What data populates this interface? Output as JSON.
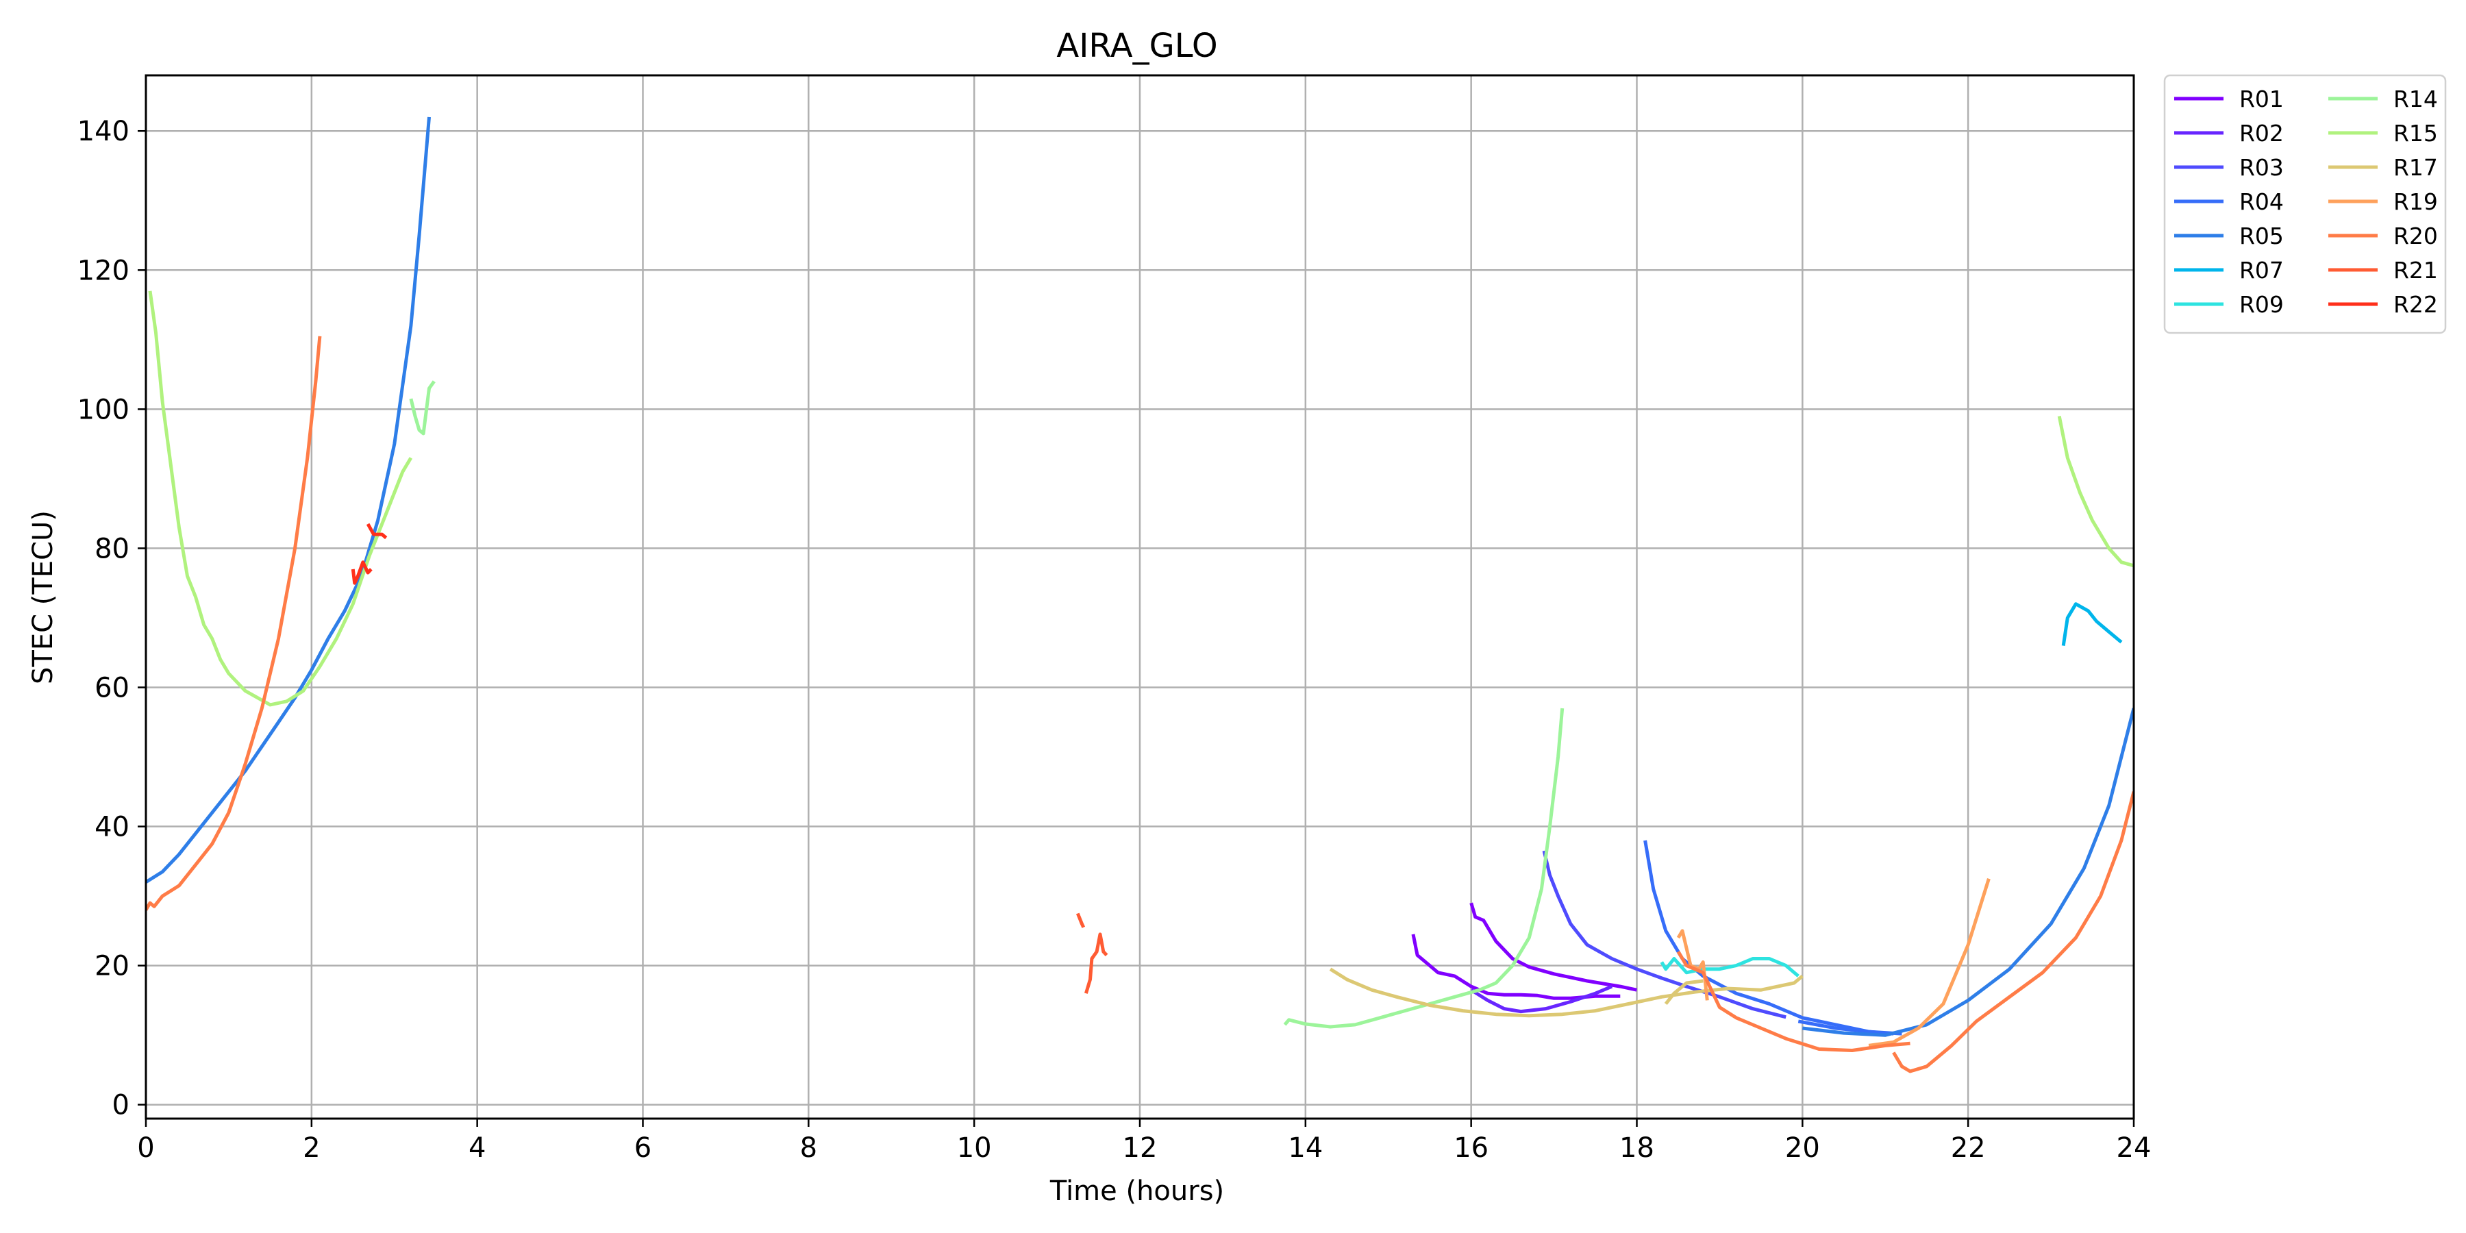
{
  "chart_data": {
    "type": "line",
    "title": "AIRA_GLO",
    "xlabel": "Time (hours)",
    "ylabel": "STEC (TECU)",
    "xlim": [
      0,
      24
    ],
    "ylim": [
      -2,
      148
    ],
    "xticks": [
      0,
      2,
      4,
      6,
      8,
      10,
      12,
      14,
      16,
      18,
      20,
      22,
      24
    ],
    "yticks": [
      0,
      20,
      40,
      60,
      80,
      100,
      120,
      140
    ],
    "grid": true,
    "legend_position": "outside-top-right",
    "legend_columns": 2,
    "series": [
      {
        "name": "R01",
        "color": "#8000ff",
        "segments": [
          [
            [
              15.3,
              24.5
            ],
            [
              15.35,
              21.5
            ],
            [
              15.45,
              20.5
            ],
            [
              15.6,
              19
            ],
            [
              15.8,
              18.5
            ],
            [
              16.0,
              17
            ],
            [
              16.2,
              16
            ],
            [
              16.4,
              15.8
            ],
            [
              16.6,
              15.8
            ],
            [
              16.8,
              15.7
            ],
            [
              17.0,
              15.3
            ],
            [
              17.2,
              15.3
            ],
            [
              17.5,
              15.6
            ],
            [
              17.8,
              15.6
            ]
          ],
          [
            [
              16.0,
              29
            ],
            [
              16.05,
              27
            ],
            [
              16.15,
              26.5
            ],
            [
              16.3,
              23.5
            ],
            [
              16.5,
              21
            ],
            [
              16.7,
              19.8
            ],
            [
              17.0,
              18.8
            ],
            [
              17.4,
              17.8
            ],
            [
              17.8,
              17.0
            ],
            [
              18.0,
              16.5
            ]
          ]
        ]
      },
      {
        "name": "R02",
        "color": "#6826ff",
        "segments": [
          [
            [
              16.0,
              16.5
            ],
            [
              16.2,
              15
            ],
            [
              16.4,
              13.8
            ],
            [
              16.6,
              13.4
            ],
            [
              16.9,
              13.8
            ],
            [
              17.2,
              14.8
            ],
            [
              17.5,
              16
            ],
            [
              17.7,
              17
            ]
          ]
        ]
      },
      {
        "name": "R03",
        "color": "#4f4bfe",
        "segments": [
          [
            [
              16.88,
              36.5
            ],
            [
              16.95,
              33
            ],
            [
              17.05,
              30
            ],
            [
              17.2,
              26
            ],
            [
              17.4,
              23
            ],
            [
              17.7,
              21
            ],
            [
              18.0,
              19.5
            ],
            [
              18.3,
              18.2
            ],
            [
              18.6,
              17
            ],
            [
              19.0,
              15.5
            ],
            [
              19.4,
              13.8
            ],
            [
              19.8,
              12.6
            ]
          ]
        ]
      },
      {
        "name": "R04",
        "color": "#366df9",
        "segments": [
          [
            [
              18.1,
              38
            ],
            [
              18.2,
              31
            ],
            [
              18.35,
              25
            ],
            [
              18.55,
              21
            ],
            [
              18.8,
              18.5
            ],
            [
              19.2,
              16
            ],
            [
              19.6,
              14.5
            ],
            [
              20.0,
              12.5
            ],
            [
              20.4,
              11.5
            ],
            [
              20.8,
              10.5
            ],
            [
              21.2,
              10.2
            ]
          ],
          [
            [
              19.95,
              12
            ],
            [
              20.4,
              11
            ],
            [
              20.8,
              10.5
            ],
            [
              21.1,
              10.2
            ]
          ]
        ]
      },
      {
        "name": "R05",
        "color": "#2e7ee8",
        "segments": [
          [
            [
              0.0,
              32
            ],
            [
              0.2,
              33.5
            ],
            [
              0.4,
              36
            ],
            [
              0.6,
              39
            ],
            [
              0.8,
              42
            ],
            [
              1.0,
              45
            ],
            [
              1.2,
              48
            ],
            [
              1.4,
              51.5
            ],
            [
              1.6,
              55
            ],
            [
              1.8,
              58.5
            ],
            [
              2.0,
              62.5
            ],
            [
              2.2,
              67
            ],
            [
              2.4,
              71
            ],
            [
              2.6,
              76
            ],
            [
              2.8,
              84
            ],
            [
              3.0,
              95
            ],
            [
              3.2,
              112
            ],
            [
              3.3,
              125
            ],
            [
              3.42,
              142
            ]
          ],
          [
            [
              20.0,
              11
            ],
            [
              20.5,
              10.3
            ],
            [
              21.0,
              10
            ],
            [
              21.5,
              11.5
            ],
            [
              22.0,
              15
            ],
            [
              22.5,
              19.5
            ],
            [
              23.0,
              26
            ],
            [
              23.4,
              34
            ],
            [
              23.7,
              43
            ],
            [
              24.0,
              57
            ]
          ]
        ]
      },
      {
        "name": "R07",
        "color": "#00b5eb",
        "segments": [
          [
            [
              23.15,
              66
            ],
            [
              23.2,
              70
            ],
            [
              23.3,
              72
            ],
            [
              23.45,
              71
            ],
            [
              23.55,
              69.5
            ],
            [
              23.7,
              68
            ],
            [
              23.85,
              66.5
            ]
          ]
        ]
      },
      {
        "name": "R09",
        "color": "#2ee3e0",
        "segments": [
          [
            [
              18.3,
              20.5
            ],
            [
              18.35,
              19.5
            ],
            [
              18.45,
              21
            ],
            [
              18.6,
              19
            ],
            [
              18.8,
              19.5
            ],
            [
              19.0,
              19.5
            ],
            [
              19.2,
              20
            ],
            [
              19.4,
              21
            ],
            [
              19.6,
              21
            ],
            [
              19.8,
              20
            ],
            [
              19.95,
              18.5
            ]
          ]
        ]
      },
      {
        "name": "R14",
        "color": "#9cf49a",
        "segments": [
          [
            [
              13.75,
              11.5
            ],
            [
              13.8,
              12.2
            ],
            [
              14.0,
              11.6
            ],
            [
              14.3,
              11.2
            ],
            [
              14.6,
              11.5
            ],
            [
              14.9,
              12.5
            ],
            [
              15.2,
              13.5
            ],
            [
              15.5,
              14.5
            ],
            [
              15.8,
              15.5
            ],
            [
              16.1,
              16.5
            ],
            [
              16.3,
              17.5
            ],
            [
              16.5,
              20
            ],
            [
              16.7,
              24
            ],
            [
              16.85,
              31
            ],
            [
              16.95,
              40
            ],
            [
              17.05,
              50
            ],
            [
              17.1,
              57
            ]
          ],
          [
            [
              3.2,
              101.5
            ],
            [
              3.25,
              99
            ],
            [
              3.3,
              97
            ],
            [
              3.35,
              96.5
            ],
            [
              3.42,
              103
            ],
            [
              3.48,
              104
            ]
          ]
        ]
      },
      {
        "name": "R15",
        "color": "#b0f27e",
        "segments": [
          [
            [
              0.05,
              117
            ],
            [
              0.12,
              111
            ],
            [
              0.2,
              101
            ],
            [
              0.3,
              92
            ],
            [
              0.4,
              83
            ],
            [
              0.5,
              76
            ],
            [
              0.6,
              73
            ],
            [
              0.7,
              69
            ],
            [
              0.8,
              67
            ],
            [
              0.9,
              64
            ],
            [
              1.0,
              62
            ],
            [
              1.2,
              59.5
            ],
            [
              1.5,
              57.5
            ],
            [
              1.7,
              58
            ],
            [
              1.9,
              59.5
            ],
            [
              2.1,
              63
            ],
            [
              2.3,
              67
            ],
            [
              2.5,
              72
            ],
            [
              2.7,
              79
            ],
            [
              2.9,
              85
            ],
            [
              3.1,
              91
            ],
            [
              3.2,
              93
            ]
          ],
          [
            [
              23.1,
              99
            ],
            [
              23.2,
              93
            ],
            [
              23.35,
              88
            ],
            [
              23.5,
              84
            ],
            [
              23.7,
              80
            ],
            [
              23.85,
              78
            ],
            [
              24.0,
              77.5
            ]
          ]
        ]
      },
      {
        "name": "R17",
        "color": "#dcc873",
        "segments": [
          [
            [
              14.3,
              19.5
            ],
            [
              14.5,
              18
            ],
            [
              14.8,
              16.5
            ],
            [
              15.1,
              15.5
            ],
            [
              15.5,
              14.3
            ],
            [
              15.9,
              13.5
            ],
            [
              16.3,
              13
            ],
            [
              16.7,
              12.8
            ],
            [
              17.1,
              13
            ],
            [
              17.5,
              13.5
            ],
            [
              17.9,
              14.5
            ],
            [
              18.3,
              15.5
            ],
            [
              18.7,
              16.2
            ],
            [
              19.1,
              16.7
            ],
            [
              19.5,
              16.5
            ],
            [
              19.9,
              17.5
            ],
            [
              20.0,
              18.5
            ]
          ],
          [
            [
              18.35,
              14.5
            ],
            [
              18.45,
              16
            ],
            [
              18.6,
              17.5
            ],
            [
              18.8,
              17.8
            ]
          ]
        ]
      },
      {
        "name": "R19",
        "color": "#fea15c",
        "segments": [
          [
            [
              18.5,
              24
            ],
            [
              18.55,
              25
            ],
            [
              18.65,
              20
            ],
            [
              18.75,
              19.5
            ],
            [
              18.8,
              20.5
            ],
            [
              18.85,
              15
            ]
          ],
          [
            [
              20.8,
              8.5
            ],
            [
              21.1,
              9
            ],
            [
              21.4,
              11
            ],
            [
              21.7,
              14.5
            ],
            [
              22.0,
              23
            ],
            [
              22.25,
              32.5
            ]
          ]
        ]
      },
      {
        "name": "R20",
        "color": "#ff7c47",
        "segments": [
          [
            [
              0.0,
              28
            ],
            [
              0.05,
              29
            ],
            [
              0.1,
              28.5
            ],
            [
              0.2,
              30
            ],
            [
              0.4,
              31.5
            ],
            [
              0.6,
              34.5
            ],
            [
              0.8,
              37.5
            ],
            [
              1.0,
              42
            ],
            [
              1.2,
              49
            ],
            [
              1.4,
              57
            ],
            [
              1.6,
              67
            ],
            [
              1.8,
              80
            ],
            [
              1.95,
              93
            ],
            [
              2.05,
              104
            ],
            [
              2.1,
              110.5
            ]
          ],
          [
            [
              18.5,
              22
            ],
            [
              18.6,
              20
            ],
            [
              18.8,
              19
            ],
            [
              19.0,
              14
            ],
            [
              19.2,
              12.5
            ],
            [
              19.5,
              11
            ],
            [
              19.8,
              9.5
            ],
            [
              20.2,
              8
            ],
            [
              20.6,
              7.8
            ],
            [
              21.0,
              8.5
            ],
            [
              21.3,
              8.8
            ]
          ],
          [
            [
              21.1,
              7.5
            ],
            [
              21.2,
              5.5
            ],
            [
              21.3,
              4.8
            ],
            [
              21.5,
              5.5
            ],
            [
              21.8,
              8.5
            ],
            [
              22.1,
              12
            ],
            [
              22.5,
              15.5
            ],
            [
              22.9,
              19
            ],
            [
              23.3,
              24
            ],
            [
              23.6,
              30
            ],
            [
              23.85,
              38
            ],
            [
              24.0,
              45
            ]
          ]
        ]
      },
      {
        "name": "R21",
        "color": "#ff5b33",
        "segments": [
          [
            [
              11.25,
              27.5
            ],
            [
              11.3,
              26
            ],
            [
              11.32,
              25.5
            ]
          ],
          [
            [
              11.35,
              16
            ],
            [
              11.4,
              18
            ],
            [
              11.42,
              21
            ],
            [
              11.48,
              22
            ],
            [
              11.52,
              24.5
            ],
            [
              11.56,
              22
            ],
            [
              11.6,
              21.5
            ]
          ]
        ]
      },
      {
        "name": "R22",
        "color": "#ff2f1a",
        "segments": [
          [
            [
              2.5,
              77
            ],
            [
              2.52,
              75
            ],
            [
              2.56,
              76
            ],
            [
              2.62,
              78
            ],
            [
              2.68,
              76.5
            ],
            [
              2.72,
              77
            ]
          ],
          [
            [
              2.68,
              83.5
            ],
            [
              2.75,
              82
            ],
            [
              2.85,
              82
            ],
            [
              2.9,
              81.5
            ]
          ]
        ]
      }
    ]
  }
}
